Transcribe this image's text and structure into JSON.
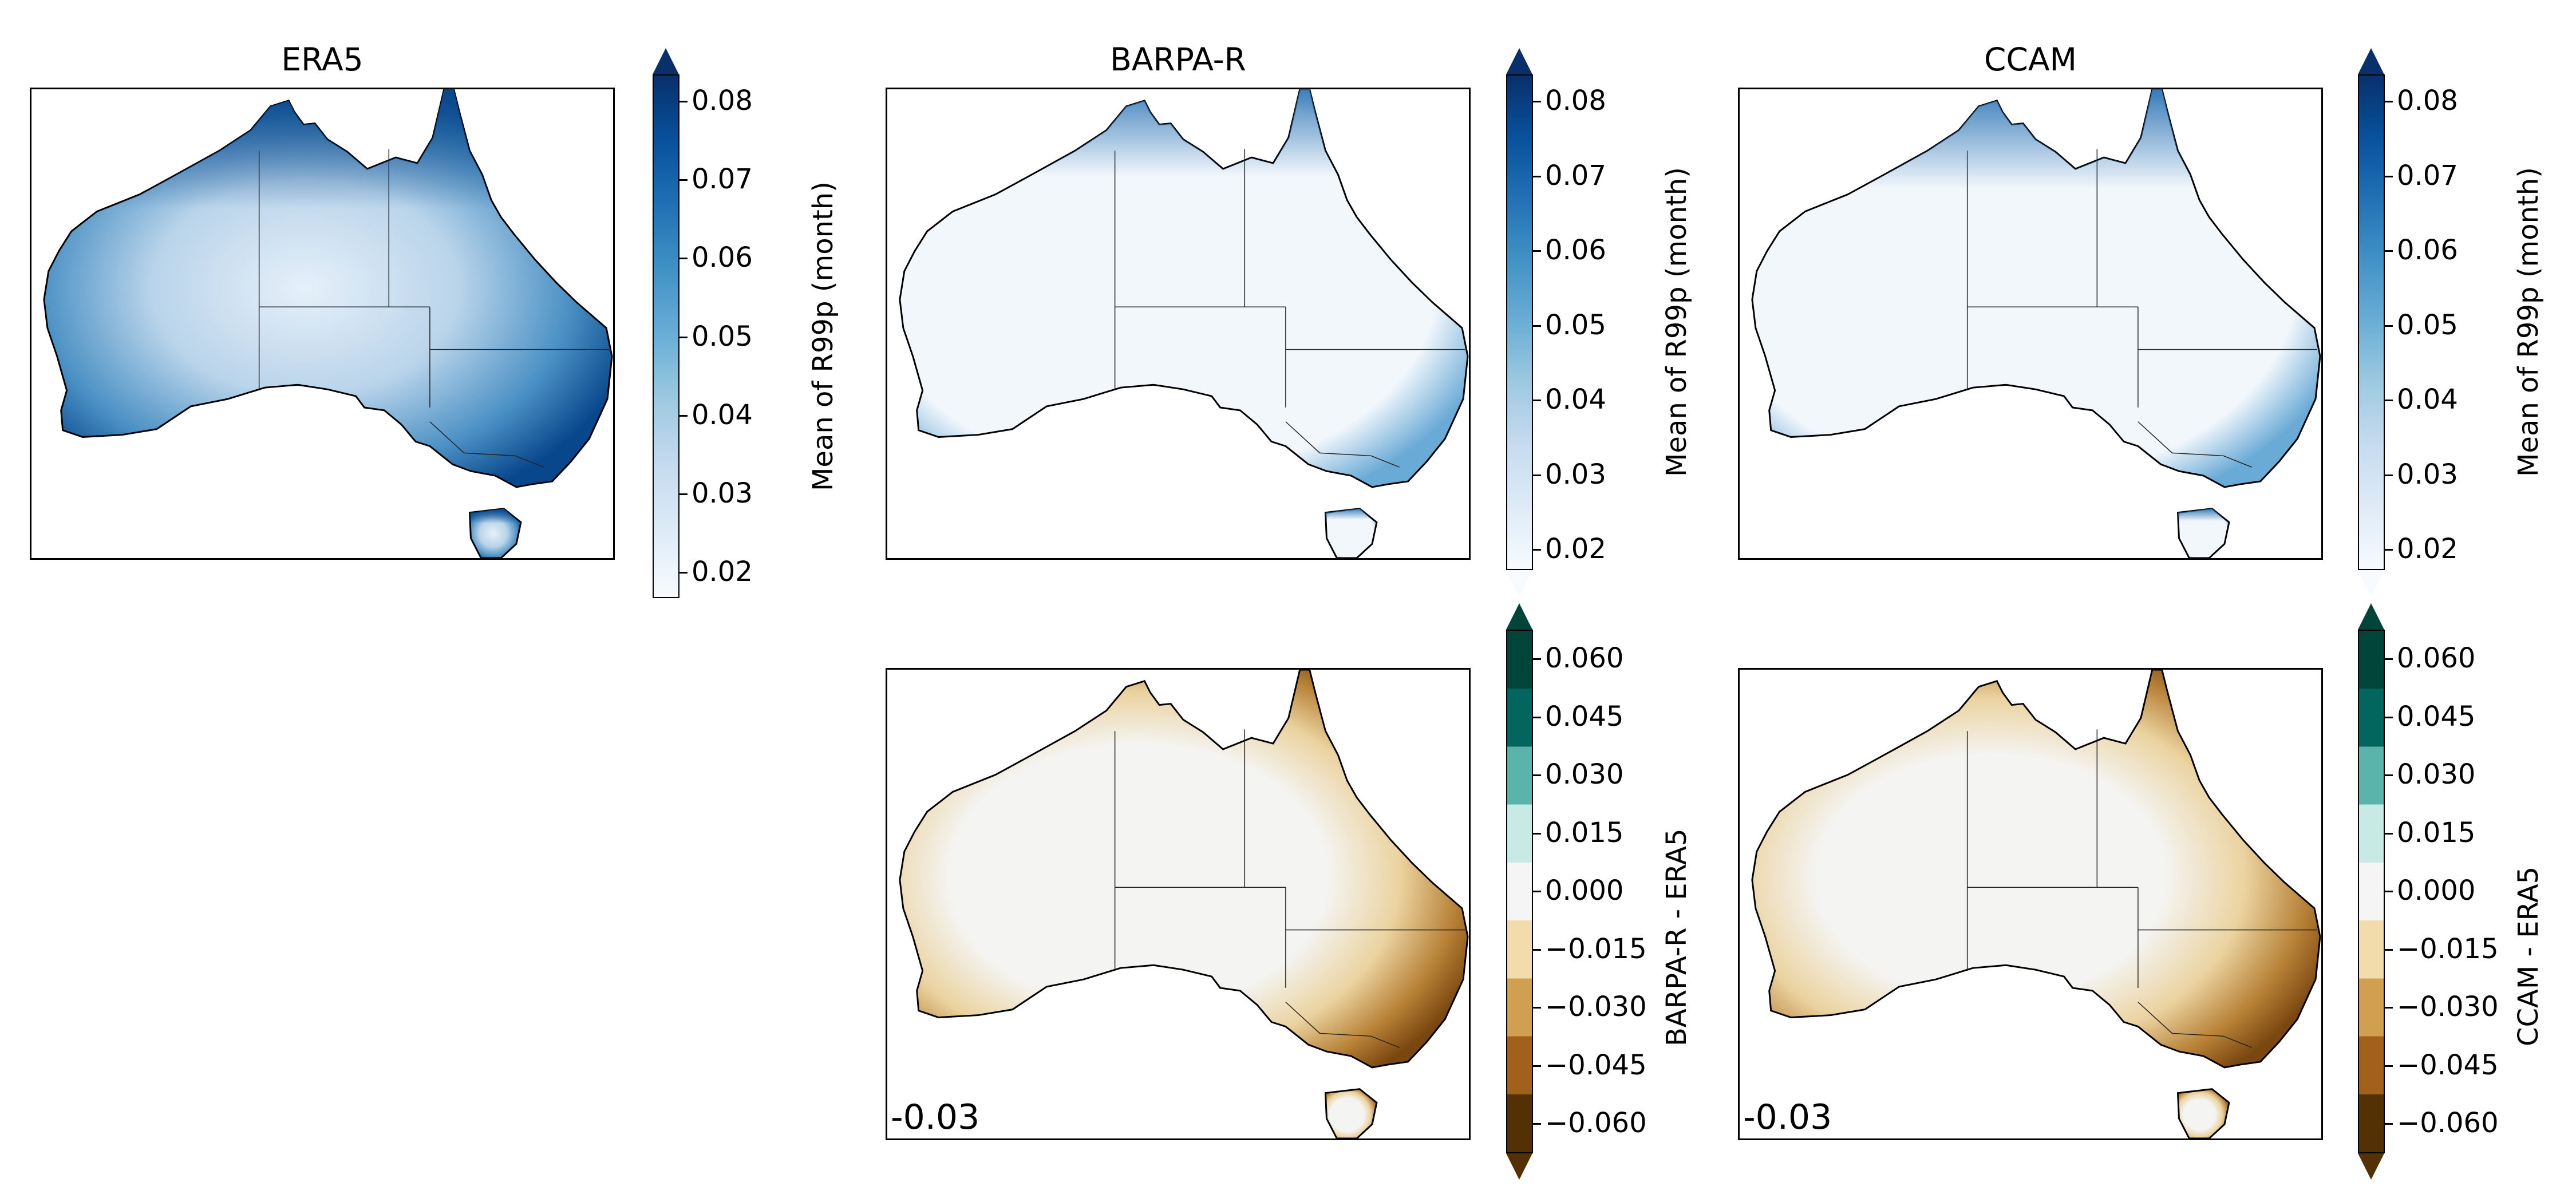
{
  "panels": {
    "era5": {
      "title": "ERA5"
    },
    "barpa": {
      "title": "BARPA-R"
    },
    "ccam": {
      "title": "CCAM"
    },
    "barpa_diff": {
      "mean_value": "-0.03"
    },
    "ccam_diff": {
      "mean_value": "-0.03"
    }
  },
  "colorbars": {
    "mean": {
      "label": "Mean of R99p (month)",
      "ticks": [
        "0.08",
        "0.07",
        "0.06",
        "0.05",
        "0.04",
        "0.03",
        "0.02"
      ],
      "colors": [
        "#08306b",
        "#08519c",
        "#2171b5",
        "#4292c6",
        "#6baed6",
        "#9ecae1",
        "#c6dbef",
        "#deebf7",
        "#f7fbff"
      ]
    },
    "diff_barpa": {
      "label": "BARPA-R - ERA5",
      "ticks": [
        "0.060",
        "0.045",
        "0.030",
        "0.015",
        "0.000",
        "−0.015",
        "−0.030",
        "−0.045",
        "−0.060"
      ]
    },
    "diff_ccam": {
      "label": "CCAM - ERA5",
      "ticks": [
        "0.060",
        "0.045",
        "0.030",
        "0.015",
        "0.000",
        "−0.015",
        "−0.030",
        "−0.045",
        "−0.060"
      ]
    },
    "diff_colors": [
      "#01453a",
      "#03665e",
      "#5ab4ac",
      "#c7eae5",
      "#f5f5f5",
      "#f3dcab",
      "#d0a050",
      "#a2611a",
      "#543005"
    ]
  },
  "map_colors": {
    "era5_edge": "#08478c",
    "era5_mid": "#4a90c4",
    "era5_inner": "#b9d4ea",
    "era5_center": "#e6f0f9",
    "rcm_base": "#f2f7fc",
    "rcm_edge": "#6aaad6",
    "rcm_north": "#2f76b6",
    "diff_base": "#f4f4f2",
    "diff_edge": "#7a4710",
    "diff_mid": "#b88238",
    "diff_inner": "#ebd3a0",
    "diff_teal": "#cfece6"
  }
}
